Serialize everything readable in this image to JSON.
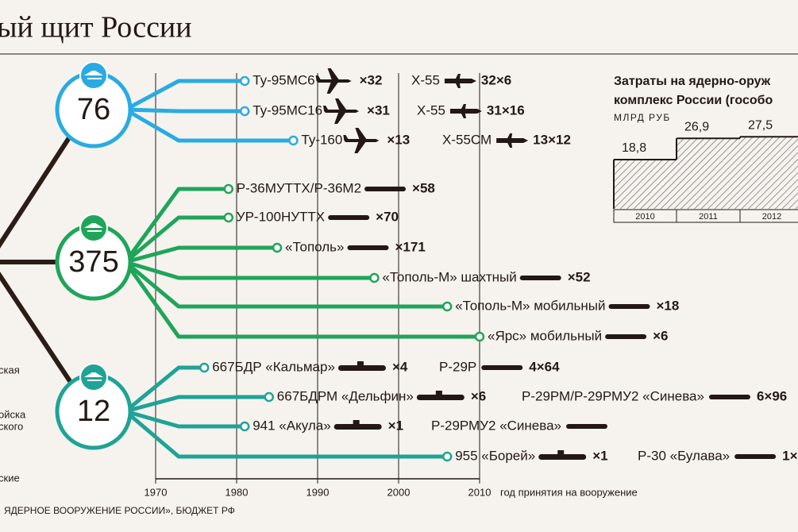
{
  "title": "ый щит России",
  "source": "ЯДЕРНОЕ ВООРУЖЕНИЕ РОССИИ», БЮДЖЕТ РФ",
  "side_labels": [
    "ская",
    "ойска",
    "ского",
    "ские"
  ],
  "timeline": {
    "xlim": [
      1970,
      2010
    ],
    "xticks": [
      1970,
      1980,
      1990,
      2000,
      2010
    ],
    "label": "год принятия на вооружение"
  },
  "groups": [
    {
      "count": "76",
      "color": "#29abe2",
      "items": [
        {
          "name": "Ту-95МС6",
          "year": 1981,
          "count_label": "×32",
          "weapon": "Х-55",
          "weapon_count": "32×6"
        },
        {
          "name": "Ту-95МС16",
          "year": 1981,
          "count_label": "×31",
          "weapon": "Х-55",
          "weapon_count": "31×16"
        },
        {
          "name": "Ту-160",
          "year": 1987,
          "count_label": "×13",
          "weapon": "Х-55СМ",
          "weapon_count": "13×12"
        }
      ]
    },
    {
      "count": "375",
      "color": "#1fa55a",
      "items": [
        {
          "name": "Р-36МУТТХ/Р-36М2",
          "year": 1979,
          "count_label": "×58"
        },
        {
          "name": "УР-100НУТТХ",
          "year": 1979,
          "count_label": "×70"
        },
        {
          "name": "«Тополь»",
          "year": 1985,
          "count_label": "×171"
        },
        {
          "name": "«Тополь-М» шахтный",
          "year": 1997,
          "count_label": "×52"
        },
        {
          "name": "«Тополь-М» мобильный",
          "year": 2006,
          "count_label": "×18"
        },
        {
          "name": "«Ярс» мобильный",
          "year": 2010,
          "count_label": "×6"
        }
      ]
    },
    {
      "count": "12",
      "color": "#1fa396",
      "items": [
        {
          "name": "667БДР «Кальмар»",
          "year": 1976,
          "count_label": "×4",
          "weapon": "Р-29Р",
          "weapon_count": "4×64"
        },
        {
          "name": "667БДРМ «Дельфин»",
          "year": 1984,
          "count_label": "×6",
          "weapon": "Р-29РМ/Р-29РМУ2 «Синева»",
          "weapon_count": "6×96"
        },
        {
          "name": "941 «Акула»",
          "year": 1981,
          "count_label": "×1",
          "weapon": "Р-29РМУ2 «Синева»"
        },
        {
          "name": "955 «Борей»",
          "year": 2006,
          "count_label": "×1",
          "weapon": "Р-30 «Булава»",
          "weapon_count": "1×"
        }
      ]
    }
  ],
  "costs": {
    "title": [
      "Затраты на ядерно-оруж",
      "комплекс России (гособо"
    ],
    "unit": "МЛРД РУБ",
    "years": [
      "2010",
      "2011",
      "2012"
    ],
    "values": [
      18.8,
      26.9,
      27.5
    ],
    "value_labels": [
      "18,8",
      "26,9",
      "27,5"
    ]
  }
}
